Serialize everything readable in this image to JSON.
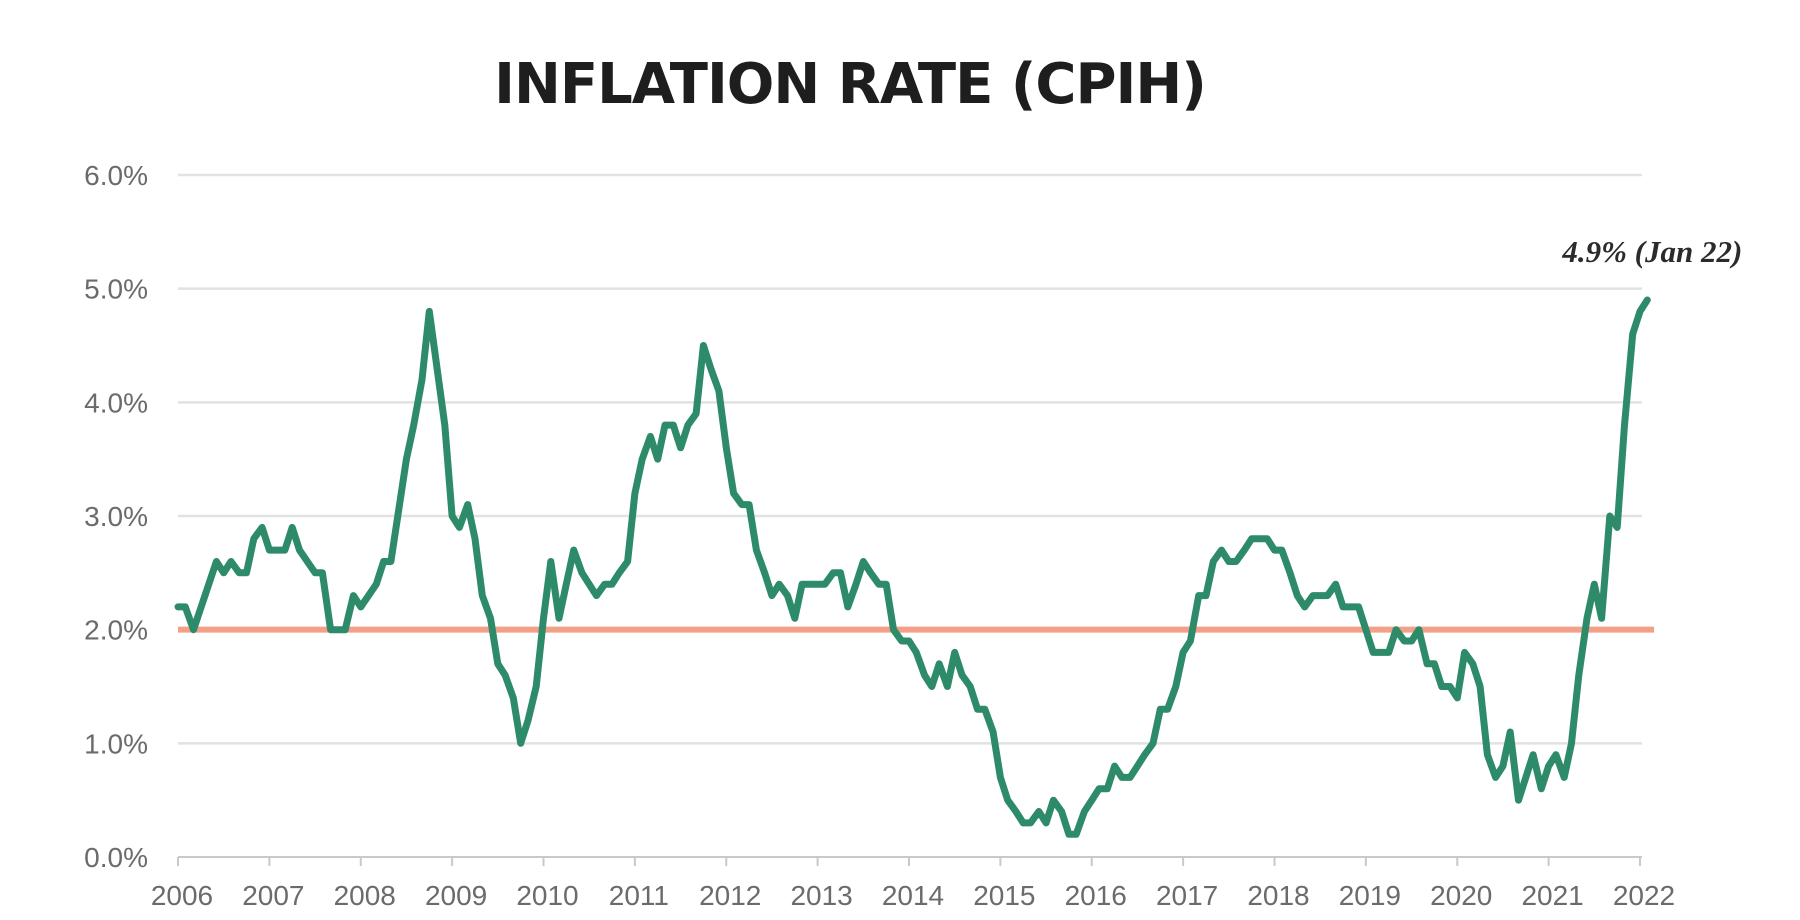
{
  "chart_data": {
    "type": "line",
    "title": "INFLATION RATE (CPIH)",
    "xlabel": "",
    "ylabel": "",
    "ylim": [
      0,
      6
    ],
    "xlim": [
      2006,
      2022
    ],
    "grid": true,
    "y_ticks": [
      {
        "value": 0,
        "label": "0.0%"
      },
      {
        "value": 1,
        "label": "1.0%"
      },
      {
        "value": 2,
        "label": "2.0%"
      },
      {
        "value": 3,
        "label": "3.0%"
      },
      {
        "value": 4,
        "label": "4.0%"
      },
      {
        "value": 5,
        "label": "5.0%"
      },
      {
        "value": 6,
        "label": "6.0%"
      }
    ],
    "x_ticks": [
      {
        "value": 2006,
        "label": "2006"
      },
      {
        "value": 2007,
        "label": "2007"
      },
      {
        "value": 2008,
        "label": "2008"
      },
      {
        "value": 2009,
        "label": "2009"
      },
      {
        "value": 2010,
        "label": "2010"
      },
      {
        "value": 2011,
        "label": "2011"
      },
      {
        "value": 2012,
        "label": "2012"
      },
      {
        "value": 2013,
        "label": "2013"
      },
      {
        "value": 2014,
        "label": "2014"
      },
      {
        "value": 2015,
        "label": "2015"
      },
      {
        "value": 2016,
        "label": "2016"
      },
      {
        "value": 2017,
        "label": "2017"
      },
      {
        "value": 2018,
        "label": "2018"
      },
      {
        "value": 2019,
        "label": "2019"
      },
      {
        "value": 2020,
        "label": "2020"
      },
      {
        "value": 2021,
        "label": "2021"
      },
      {
        "value": 2022,
        "label": "2022"
      }
    ],
    "series": [
      {
        "color": "#2e8b6a",
        "x": [
          2006.0,
          2006.08,
          2006.17,
          2006.42,
          2006.5,
          2006.58,
          2006.67,
          2006.75,
          2006.83,
          2006.92,
          2007.0,
          2007.17,
          2007.25,
          2007.33,
          2007.5,
          2007.58,
          2007.67,
          2007.75,
          2007.83,
          2007.92,
          2008.0,
          2008.17,
          2008.25,
          2008.33,
          2008.5,
          2008.58,
          2008.67,
          2008.75,
          2008.92,
          2009.0,
          2009.08,
          2009.17,
          2009.25,
          2009.33,
          2009.42,
          2009.5,
          2009.58,
          2009.67,
          2009.75,
          2009.83,
          2009.92,
          2010.0,
          2010.08,
          2010.17,
          2010.25,
          2010.33,
          2010.42,
          2010.5,
          2010.58,
          2010.67,
          2010.75,
          2010.83,
          2010.92,
          2011.0,
          2011.08,
          2011.17,
          2011.25,
          2011.33,
          2011.42,
          2011.5,
          2011.58,
          2011.67,
          2011.75,
          2011.83,
          2011.92,
          2012.0,
          2012.08,
          2012.17,
          2012.25,
          2012.33,
          2012.42,
          2012.5,
          2012.58,
          2012.67,
          2012.75,
          2012.83,
          2012.92,
          2013.0,
          2013.08,
          2013.17,
          2013.25,
          2013.33,
          2013.42,
          2013.5,
          2013.58,
          2013.67,
          2013.75,
          2013.83,
          2013.92,
          2014.0,
          2014.08,
          2014.17,
          2014.25,
          2014.33,
          2014.42,
          2014.5,
          2014.58,
          2014.67,
          2014.75,
          2014.83,
          2014.92,
          2015.0,
          2015.08,
          2015.17,
          2015.25,
          2015.33,
          2015.42,
          2015.5,
          2015.58,
          2015.67,
          2015.75,
          2015.83,
          2015.92,
          2016.0,
          2016.08,
          2016.17,
          2016.25,
          2016.33,
          2016.42,
          2016.5,
          2016.58,
          2016.67,
          2016.75,
          2016.83,
          2016.92,
          2017.0,
          2017.08,
          2017.17,
          2017.25,
          2017.33,
          2017.42,
          2017.5,
          2017.58,
          2017.67,
          2017.75,
          2017.83,
          2017.92,
          2018.0,
          2018.08,
          2018.17,
          2018.25,
          2018.33,
          2018.42,
          2018.5,
          2018.58,
          2018.67,
          2018.75,
          2018.83,
          2018.92,
          2019.0,
          2019.08,
          2019.17,
          2019.25,
          2019.33,
          2019.42,
          2019.5,
          2019.58,
          2019.67,
          2019.75,
          2019.83,
          2019.92,
          2020.0,
          2020.08,
          2020.17,
          2020.25,
          2020.33,
          2020.42,
          2020.5,
          2020.58,
          2020.67,
          2020.75,
          2020.83,
          2020.92,
          2021.0,
          2021.08,
          2021.17,
          2021.25,
          2021.33,
          2021.42,
          2021.5,
          2021.58,
          2021.67,
          2021.75,
          2021.83,
          2021.92,
          2022.0,
          2022.08
        ],
        "y": [
          2.2,
          2.2,
          2.0,
          2.6,
          2.5,
          2.6,
          2.5,
          2.5,
          2.8,
          2.9,
          2.7,
          2.7,
          2.9,
          2.7,
          2.5,
          2.5,
          2.0,
          2.0,
          2.0,
          2.3,
          2.2,
          2.4,
          2.6,
          2.6,
          3.5,
          3.8,
          4.2,
          4.8,
          3.8,
          3.0,
          2.9,
          3.1,
          2.8,
          2.3,
          2.1,
          1.7,
          1.6,
          1.4,
          1.0,
          1.2,
          1.5,
          2.1,
          2.6,
          2.1,
          2.4,
          2.7,
          2.5,
          2.4,
          2.3,
          2.4,
          2.4,
          2.5,
          2.6,
          3.2,
          3.5,
          3.7,
          3.5,
          3.8,
          3.8,
          3.6,
          3.8,
          3.9,
          4.5,
          4.3,
          4.1,
          3.6,
          3.2,
          3.1,
          3.1,
          2.7,
          2.5,
          2.3,
          2.4,
          2.3,
          2.1,
          2.4,
          2.4,
          2.4,
          2.4,
          2.5,
          2.5,
          2.2,
          2.4,
          2.6,
          2.5,
          2.4,
          2.4,
          2.0,
          1.9,
          1.9,
          1.8,
          1.6,
          1.5,
          1.7,
          1.5,
          1.8,
          1.6,
          1.5,
          1.3,
          1.3,
          1.1,
          0.7,
          0.5,
          0.4,
          0.3,
          0.3,
          0.4,
          0.3,
          0.5,
          0.4,
          0.2,
          0.2,
          0.4,
          0.5,
          0.6,
          0.6,
          0.8,
          0.7,
          0.7,
          0.8,
          0.9,
          1.0,
          1.3,
          1.3,
          1.5,
          1.8,
          1.9,
          2.3,
          2.3,
          2.6,
          2.7,
          2.6,
          2.6,
          2.7,
          2.8,
          2.8,
          2.8,
          2.7,
          2.7,
          2.5,
          2.3,
          2.2,
          2.3,
          2.3,
          2.3,
          2.4,
          2.2,
          2.2,
          2.2,
          2.0,
          1.8,
          1.8,
          1.8,
          2.0,
          1.9,
          1.9,
          2.0,
          1.7,
          1.7,
          1.5,
          1.5,
          1.4,
          1.8,
          1.7,
          1.5,
          0.9,
          0.7,
          0.8,
          1.1,
          0.5,
          0.7,
          0.9,
          0.6,
          0.8,
          0.9,
          0.7,
          1.0,
          1.6,
          2.1,
          2.4,
          2.1,
          3.0,
          2.9,
          3.8,
          4.6,
          4.8,
          4.9
        ]
      }
    ],
    "reference_lines": [
      {
        "y": 2.0,
        "color": "#f4a088"
      }
    ],
    "annotations": [
      {
        "text": "4.9% (Jan 22)",
        "x": 2022.08,
        "y": 4.9
      }
    ]
  }
}
